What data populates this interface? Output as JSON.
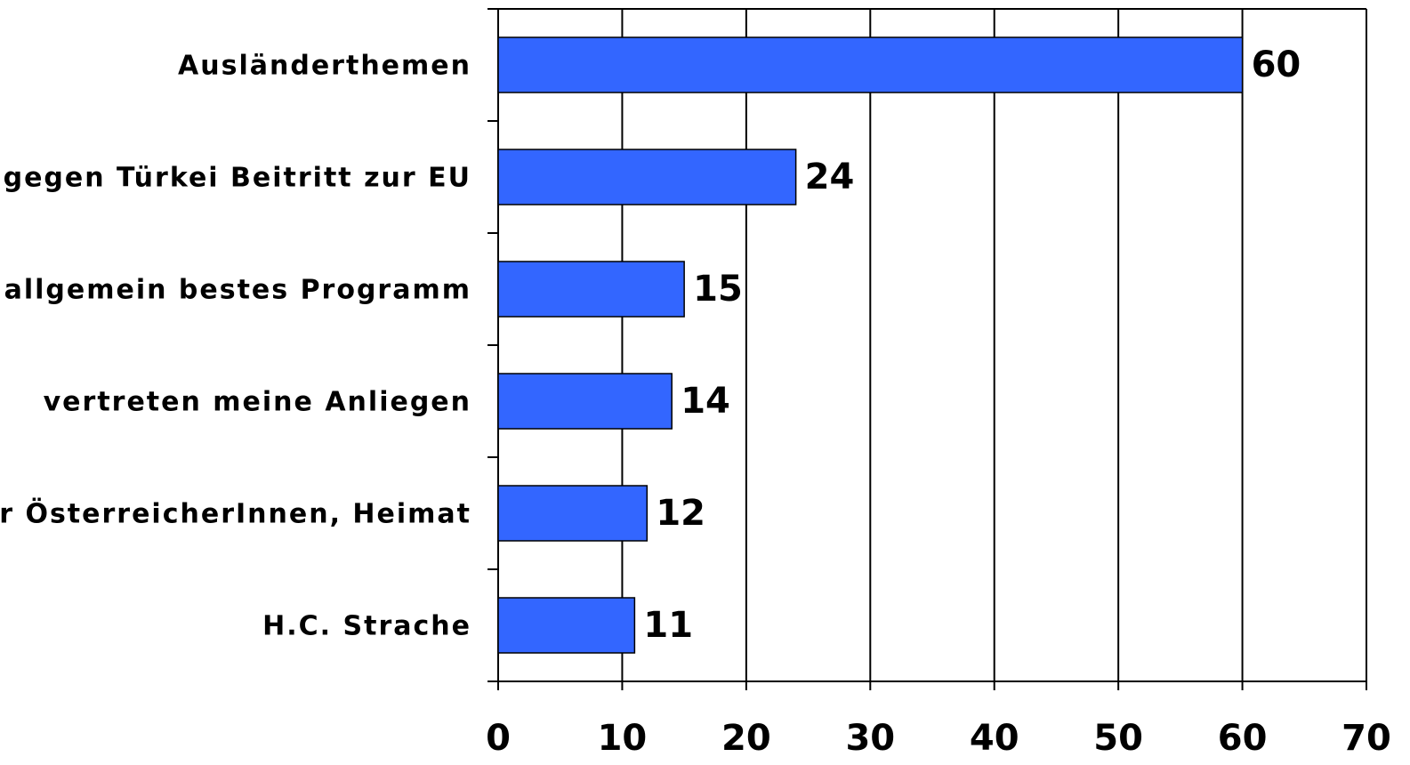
{
  "chart_data": {
    "type": "bar",
    "orientation": "horizontal",
    "categories": [
      "Ausländerthemen",
      "gegen Türkei Beitritt zur EU",
      "allgemein bestes Programm",
      "vertreten meine Anliegen",
      "für ÖsterreicherInnen, Heimat",
      "H.C. Strache"
    ],
    "values": [
      60,
      24,
      15,
      14,
      12,
      11
    ],
    "color": "#3366ff",
    "xlim": [
      0,
      70
    ],
    "xticks": [
      0,
      10,
      20,
      30,
      40,
      50,
      60,
      70
    ],
    "grid": true
  }
}
